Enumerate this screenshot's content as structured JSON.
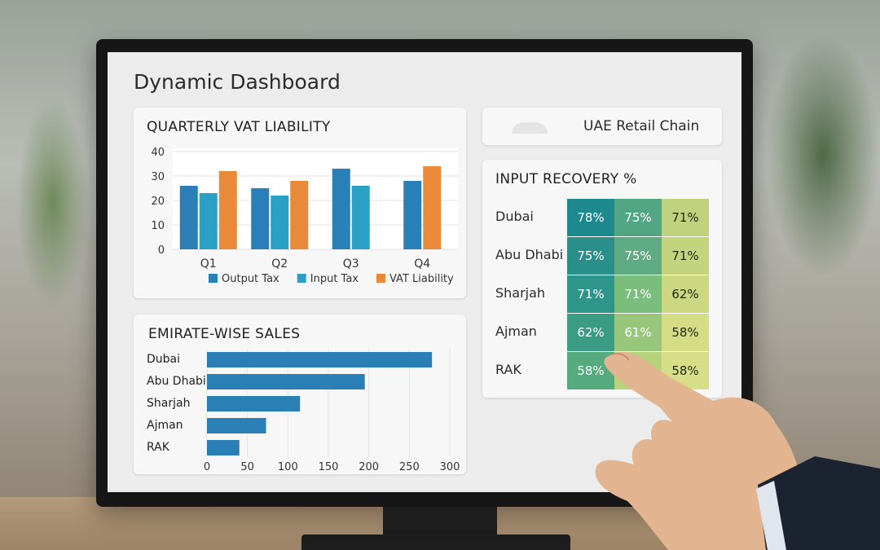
{
  "dashboard": {
    "title": "Dynamic Dashboard"
  },
  "chain": {
    "name": "UAE Retail Chain",
    "logo_icon": "arc-logo-icon"
  },
  "vat_chart": {
    "title": "QUARTERLY VAT LIABILITY",
    "yticks": [
      "40",
      "30",
      "20",
      "10",
      "0"
    ],
    "legend": [
      "Output Tax",
      "Input Tax",
      "VAT Liability"
    ]
  },
  "sales_chart": {
    "title": "EMIRATE-WISE SALES",
    "xticks": [
      "0",
      "50",
      "100",
      "150",
      "200",
      "250",
      "300"
    ]
  },
  "recovery": {
    "title": "INPUT RECOVERY %",
    "rows": [
      {
        "label": "Dubai",
        "cells": [
          "78%",
          "75%",
          "71%"
        ]
      },
      {
        "label": "Abu Dhabi",
        "cells": [
          "75%",
          "75%",
          "71%"
        ]
      },
      {
        "label": "Sharjah",
        "cells": [
          "71%",
          "71%",
          "62%"
        ]
      },
      {
        "label": "Ajman",
        "cells": [
          "62%",
          "61%",
          "58%"
        ]
      },
      {
        "label": "RAK",
        "cells": [
          "58%",
          "",
          "58%"
        ]
      }
    ],
    "colors": [
      "#1f8a8e",
      "#2c9a8a",
      "#3aa37c",
      "#5cb57a",
      "#86c479",
      "#b3d27a",
      "#d4dc84"
    ]
  },
  "chart_data": [
    {
      "type": "bar",
      "title": "QUARTERLY VAT LIABILITY",
      "categories": [
        "Q1",
        "Q2",
        "Q3",
        "Q4"
      ],
      "ylim": [
        0,
        40
      ],
      "legend_position": "bottom",
      "series": [
        {
          "name": "Output Tax",
          "color": "#2a7fb6",
          "values": [
            26,
            25,
            33,
            28
          ]
        },
        {
          "name": "Input Tax",
          "color": "#2aa0c4",
          "values": [
            23,
            22,
            26,
            null
          ]
        },
        {
          "name": "VAT Liability",
          "color": "#e88a3a",
          "values": [
            32,
            28,
            null,
            34
          ]
        }
      ]
    },
    {
      "type": "bar",
      "orientation": "horizontal",
      "title": "EMIRATE-WISE SALES",
      "categories": [
        "Dubai",
        "Abu Dhabi",
        "Sharjah",
        "Ajman",
        "RAK"
      ],
      "values": [
        278,
        195,
        115,
        73,
        40
      ],
      "xlim": [
        0,
        300
      ],
      "color": "#2a7fb6"
    }
  ]
}
